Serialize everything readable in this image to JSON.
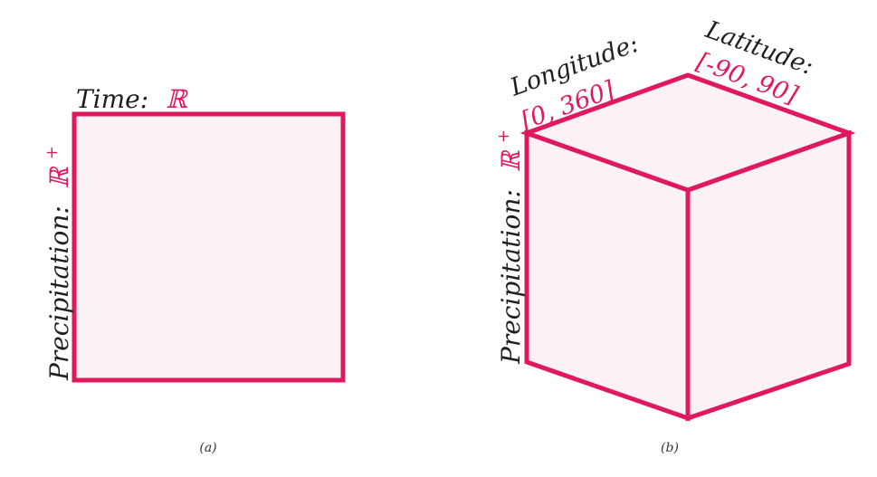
{
  "colors": {
    "accent": "#e0185e",
    "fill": "#fcf2f6",
    "text": "#1f1f1f"
  },
  "panel_a": {
    "top_label": "Time:",
    "top_domain": "ℝ",
    "side_label": "Precipitation:",
    "side_domain": "ℝ",
    "side_domain_sup": "+",
    "caption": "(a)"
  },
  "panel_b": {
    "longitude_label": "Longitude:",
    "longitude_range": "[0, 360]",
    "latitude_label": "Latitude:",
    "latitude_range": "[-90, 90]",
    "side_label": "Precipitation:",
    "side_domain": "ℝ",
    "side_domain_sup": "+",
    "caption": "(b)"
  }
}
